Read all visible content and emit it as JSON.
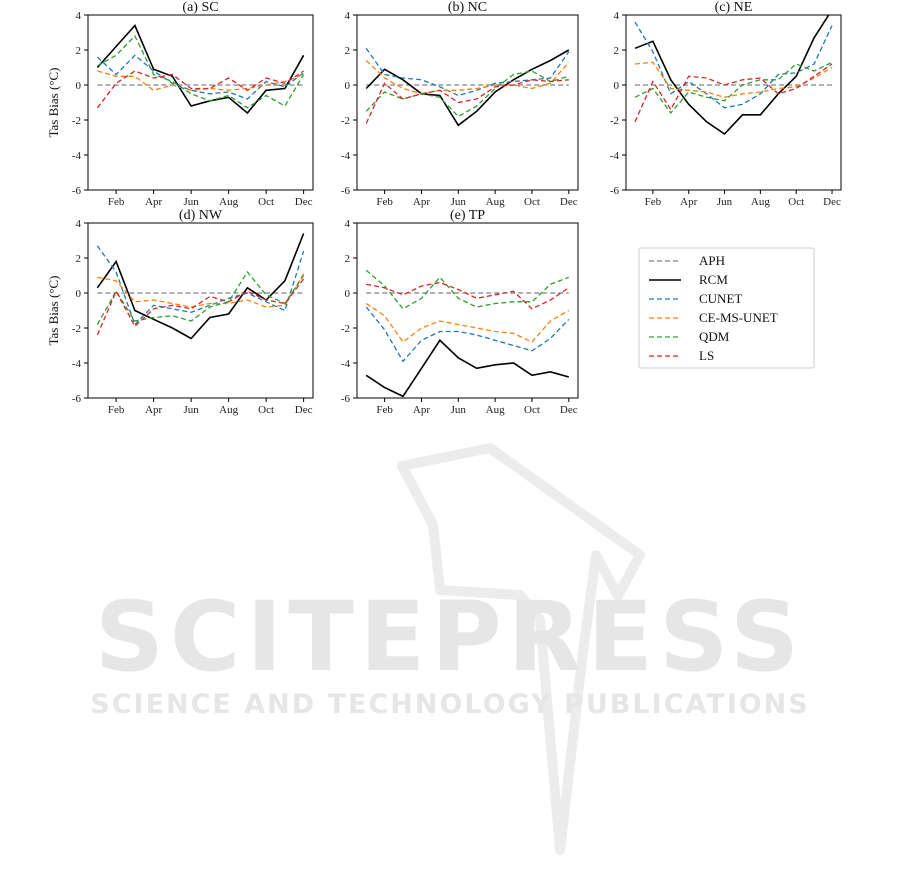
{
  "watermark": {
    "main": "SCITEPRESS",
    "sub": "SCIENCE AND TECHNOLOGY PUBLICATIONS"
  },
  "chart_data": {
    "type": "line",
    "ylabel": "Tas Bias (°C)",
    "ylim": [
      -6,
      4
    ],
    "yticks": [
      -6,
      -4,
      -2,
      0,
      2,
      4
    ],
    "x": [
      1,
      2,
      3,
      4,
      5,
      6,
      7,
      8,
      9,
      10,
      11,
      12
    ],
    "xticks": [
      2,
      4,
      6,
      8,
      10,
      12
    ],
    "xtick_labels": [
      "Feb",
      "Apr",
      "Jun",
      "Aug",
      "Oct",
      "Dec"
    ],
    "legend_placement": "right of panel (e)",
    "series_styles": [
      {
        "name": "APH",
        "color": "#808080",
        "dash": "dashed"
      },
      {
        "name": "RCM",
        "color": "#000000",
        "dash": "solid"
      },
      {
        "name": "CUNET",
        "color": "#1f77b4",
        "dash": "dashed"
      },
      {
        "name": "CE-MS-UNET",
        "color": "#ff7f0e",
        "dash": "dashed"
      },
      {
        "name": "QDM",
        "color": "#2ca02c",
        "dash": "dashed"
      },
      {
        "name": "LS",
        "color": "#d62728",
        "dash": "dashed"
      }
    ],
    "panels": [
      {
        "title": "(a) SC",
        "series": [
          {
            "name": "APH",
            "values": [
              0,
              0,
              0,
              0,
              0,
              0,
              0,
              0,
              0,
              0,
              0,
              0
            ]
          },
          {
            "name": "RCM",
            "values": [
              1.0,
              2.2,
              3.4,
              0.9,
              0.5,
              -1.2,
              -0.9,
              -0.7,
              -1.6,
              -0.3,
              -0.2,
              1.7
            ]
          },
          {
            "name": "CUNET",
            "values": [
              1.6,
              0.6,
              1.7,
              0.8,
              0.1,
              -0.3,
              -0.5,
              -0.4,
              -0.8,
              0.2,
              -0.1,
              0.7
            ]
          },
          {
            "name": "CE-MS-UNET",
            "values": [
              0.8,
              0.5,
              0.5,
              -0.3,
              0.0,
              -0.3,
              -0.2,
              -0.3,
              -0.2,
              0.0,
              0.2,
              0.6
            ]
          },
          {
            "name": "QDM",
            "values": [
              1.1,
              1.7,
              2.8,
              0.6,
              0.2,
              -0.5,
              -0.9,
              -0.6,
              -1.3,
              -0.6,
              -1.2,
              0.6
            ]
          },
          {
            "name": "LS",
            "values": [
              -1.3,
              0.1,
              0.8,
              0.4,
              0.6,
              -0.2,
              -0.2,
              0.4,
              -0.3,
              0.4,
              0.1,
              0.8
            ]
          }
        ]
      },
      {
        "title": "(b) NC",
        "series": [
          {
            "name": "APH",
            "values": [
              0,
              0,
              0,
              0,
              0,
              0,
              0,
              0,
              0,
              0,
              0,
              0
            ]
          },
          {
            "name": "RCM",
            "values": [
              -0.2,
              0.9,
              0.3,
              -0.5,
              -0.6,
              -2.3,
              -1.5,
              -0.4,
              0.3,
              0.9,
              1.4,
              2.0
            ]
          },
          {
            "name": "CUNET",
            "values": [
              2.1,
              0.6,
              0.4,
              0.3,
              -0.1,
              -0.6,
              -0.3,
              0.1,
              0.2,
              0.3,
              0.4,
              1.9
            ]
          },
          {
            "name": "CE-MS-UNET",
            "values": [
              1.4,
              0.4,
              -0.2,
              -0.5,
              -0.3,
              -0.3,
              -0.2,
              0.0,
              0.0,
              -0.2,
              0.1,
              1.3
            ]
          },
          {
            "name": "QDM",
            "values": [
              -1.5,
              -0.4,
              -0.8,
              -0.5,
              -0.7,
              -1.8,
              -1.2,
              -0.2,
              0.6,
              0.8,
              0.2,
              0.5
            ]
          },
          {
            "name": "LS",
            "values": [
              -2.2,
              0.1,
              -0.8,
              -0.5,
              -0.3,
              -1.0,
              -0.8,
              -0.1,
              0.0,
              0.3,
              0.2,
              0.3
            ]
          }
        ]
      },
      {
        "title": "(c) NE",
        "series": [
          {
            "name": "APH",
            "values": [
              0,
              0,
              0,
              0,
              0,
              0,
              0,
              0,
              0,
              0,
              0,
              0
            ]
          },
          {
            "name": "RCM",
            "values": [
              2.1,
              2.5,
              0.3,
              -1.1,
              -2.1,
              -2.8,
              -1.7,
              -1.7,
              -0.5,
              0.5,
              2.7,
              4.3
            ]
          },
          {
            "name": "CUNET",
            "values": [
              3.6,
              1.9,
              -0.5,
              0.2,
              -0.5,
              -1.3,
              -1.1,
              -0.5,
              0.6,
              0.7,
              1.2,
              3.4
            ]
          },
          {
            "name": "CE-MS-UNET",
            "values": [
              1.2,
              1.3,
              -0.2,
              -0.3,
              -0.4,
              -0.7,
              -0.5,
              -0.4,
              -0.2,
              -0.1,
              0.4,
              1.0
            ]
          },
          {
            "name": "QDM",
            "values": [
              -0.7,
              -0.2,
              -1.6,
              -0.4,
              -0.7,
              -0.9,
              0.0,
              0.3,
              0.3,
              1.2,
              0.8,
              1.3
            ]
          },
          {
            "name": "LS",
            "values": [
              -2.1,
              0.2,
              -1.4,
              0.5,
              0.4,
              0.0,
              0.3,
              0.4,
              -0.5,
              -0.2,
              0.5,
              1.2
            ]
          }
        ]
      },
      {
        "title": "(d) NW",
        "series": [
          {
            "name": "APH",
            "values": [
              0,
              0,
              0,
              0,
              0,
              0,
              0,
              0,
              0,
              0,
              0,
              0
            ]
          },
          {
            "name": "RCM",
            "values": [
              0.3,
              1.8,
              -1.0,
              -1.5,
              -2.0,
              -2.6,
              -1.4,
              -1.2,
              0.3,
              -0.4,
              0.7,
              3.4
            ]
          },
          {
            "name": "CUNET",
            "values": [
              2.7,
              1.2,
              -1.8,
              -0.7,
              -0.9,
              -1.1,
              -0.7,
              -0.3,
              0.0,
              -0.5,
              -1.0,
              2.4
            ]
          },
          {
            "name": "CE-MS-UNET",
            "values": [
              0.9,
              0.7,
              -0.5,
              -0.4,
              -0.6,
              -0.8,
              -0.6,
              -0.6,
              -0.4,
              -0.8,
              -0.7,
              1.1
            ]
          },
          {
            "name": "QDM",
            "values": [
              -1.8,
              0.1,
              -1.6,
              -1.4,
              -1.3,
              -1.6,
              -0.8,
              -0.5,
              1.2,
              -0.1,
              -0.6,
              1.0
            ]
          },
          {
            "name": "LS",
            "values": [
              -2.4,
              0.1,
              -1.9,
              -0.9,
              -0.7,
              -0.9,
              -0.2,
              -0.5,
              0.1,
              -0.4,
              -0.6,
              0.8
            ]
          }
        ]
      },
      {
        "title": "(e) TP",
        "series": [
          {
            "name": "APH",
            "values": [
              0,
              0,
              0,
              0,
              0,
              0,
              0,
              0,
              0,
              0,
              0,
              0
            ]
          },
          {
            "name": "RCM",
            "values": [
              -4.7,
              -5.4,
              -5.9,
              -4.3,
              -2.7,
              -3.7,
              -4.3,
              -4.1,
              -4.0,
              -4.7,
              -4.5,
              -4.8
            ]
          },
          {
            "name": "CUNET",
            "values": [
              -0.8,
              -2.1,
              -3.9,
              -2.7,
              -2.2,
              -2.2,
              -2.4,
              -2.7,
              -3.0,
              -3.3,
              -2.6,
              -1.5
            ]
          },
          {
            "name": "CE-MS-UNET",
            "values": [
              -0.6,
              -1.3,
              -2.8,
              -2.0,
              -1.6,
              -1.8,
              -2.0,
              -2.2,
              -2.3,
              -2.8,
              -1.6,
              -1.0
            ]
          },
          {
            "name": "QDM",
            "values": [
              1.3,
              0.4,
              -0.9,
              -0.3,
              0.9,
              -0.3,
              -0.8,
              -0.6,
              -0.5,
              -0.5,
              0.5,
              0.9
            ]
          },
          {
            "name": "LS",
            "values": [
              0.5,
              0.3,
              -0.1,
              0.4,
              0.6,
              0.2,
              -0.3,
              -0.1,
              0.1,
              -0.9,
              -0.4,
              0.3
            ]
          }
        ]
      }
    ]
  }
}
